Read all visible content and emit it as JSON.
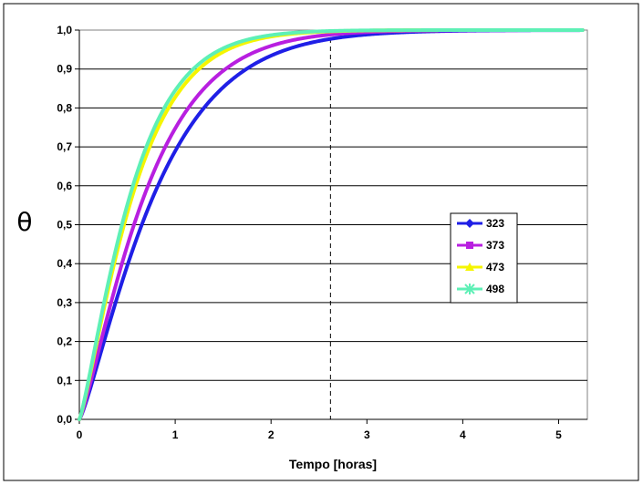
{
  "chart_data": {
    "type": "line",
    "xlabel": "Tempo [horas]",
    "ylabel": "θ",
    "xlim": [
      0,
      5.3
    ],
    "ylim": [
      0,
      1.0
    ],
    "x_ticks": [
      "0",
      "1",
      "2",
      "3",
      "4",
      "5"
    ],
    "y_ticks": [
      "0,0",
      "0,1",
      "0,2",
      "0,3",
      "0,4",
      "0,5",
      "0,6",
      "0,7",
      "0,8",
      "0,9",
      "1,0"
    ],
    "grid": "horizontal",
    "legend_position": "right",
    "reference_line_x": 2.62,
    "x_end": 5.25,
    "series": [
      {
        "name": "323",
        "color": "#1f1fe6",
        "marker": "diamond",
        "tau": 0.88,
        "n": 1.22
      },
      {
        "name": "373",
        "color": "#b81fe0",
        "marker": "square",
        "tau": 0.77,
        "n": 1.22
      },
      {
        "name": "473",
        "color": "#f5f500",
        "marker": "triangle",
        "tau": 0.63,
        "n": 1.22
      },
      {
        "name": "498",
        "color": "#5ef0b6",
        "marker": "asterisk",
        "tau": 0.6,
        "n": 1.22
      }
    ]
  }
}
